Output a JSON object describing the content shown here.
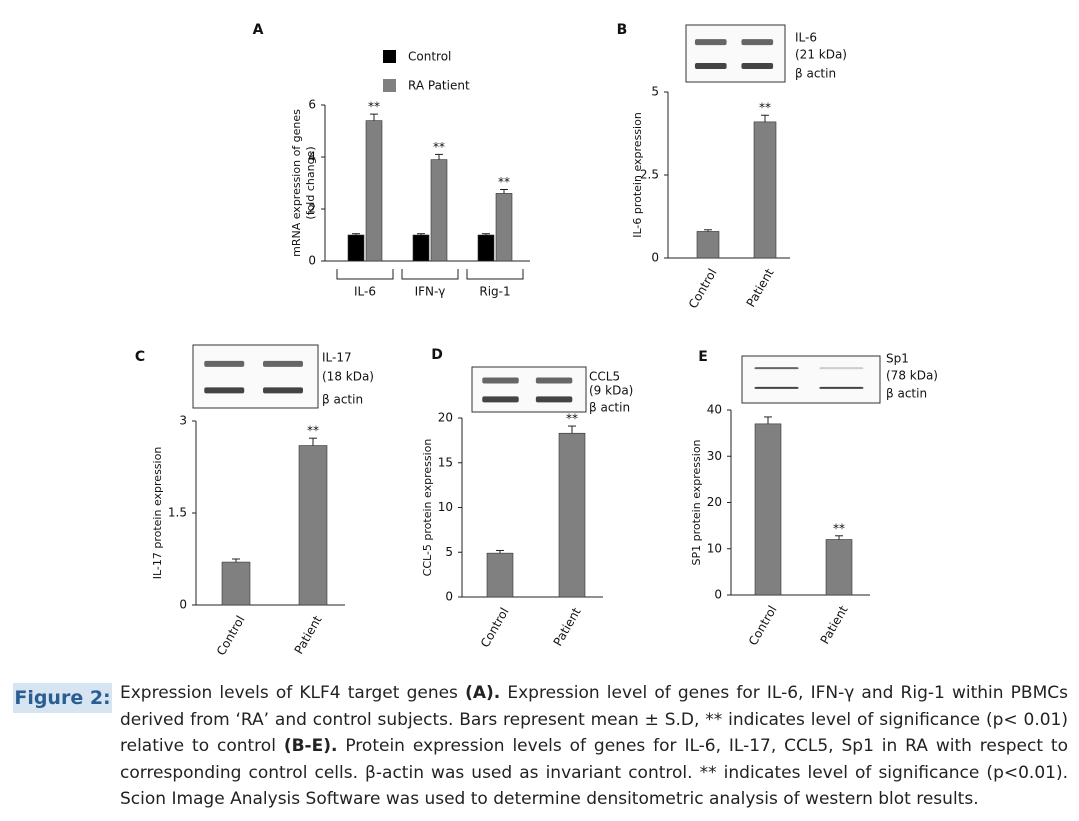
{
  "chart_data": [
    {
      "type": "bar",
      "panel": "A",
      "ylabel": [
        "mRNA expression of genes",
        "(fold change)"
      ],
      "categories": [
        "IL-6",
        "IFN-γ",
        "Rig-1"
      ],
      "series": [
        {
          "name": "Control",
          "color": "#000000",
          "values": [
            1,
            1,
            1
          ],
          "errors": [
            0.05,
            0.05,
            0.05
          ]
        },
        {
          "name": "RA Patient",
          "color": "#808080",
          "values": [
            5.4,
            3.9,
            2.6
          ],
          "errors": [
            0.25,
            0.2,
            0.15
          ],
          "annotations": [
            "**",
            "**",
            "**"
          ]
        }
      ],
      "ylim": [
        0,
        6
      ],
      "yticks": [
        0,
        2,
        4,
        6
      ]
    },
    {
      "type": "bar",
      "panel": "B",
      "ylabel": "IL-6 protein expression",
      "blot_labels": [
        "IL-6",
        "(21 kDa)",
        "β actin"
      ],
      "categories": [
        "Control",
        "Patient"
      ],
      "values": [
        0.8,
        4.1
      ],
      "errors": [
        0.05,
        0.2
      ],
      "color": "#808080",
      "annotations": [
        {
          "index": 1,
          "text": "**"
        }
      ],
      "ylim": [
        0,
        5
      ],
      "yticks": [
        0,
        2.5,
        5
      ]
    },
    {
      "type": "bar",
      "panel": "C",
      "ylabel": "IL-17 protein expression",
      "blot_labels": [
        "IL-17",
        "(18 kDa)",
        "β actin"
      ],
      "categories": [
        "Control",
        "Patient"
      ],
      "values": [
        0.7,
        2.6
      ],
      "errors": [
        0.05,
        0.12
      ],
      "color": "#808080",
      "annotations": [
        {
          "index": 1,
          "text": "**"
        }
      ],
      "ylim": [
        0,
        3
      ],
      "yticks": [
        0,
        1.5,
        3
      ]
    },
    {
      "type": "bar",
      "panel": "D",
      "ylabel": "CCL-5 protein expression",
      "blot_labels": [
        "CCL5",
        "(9 kDa)",
        "β actin"
      ],
      "categories": [
        "Control",
        "Patient"
      ],
      "values": [
        4.9,
        18.3
      ],
      "errors": [
        0.3,
        0.8
      ],
      "color": "#808080",
      "annotations": [
        {
          "index": 1,
          "text": "**"
        }
      ],
      "ylim": [
        0,
        20
      ],
      "yticks": [
        0,
        5,
        10,
        15,
        20
      ]
    },
    {
      "type": "bar",
      "panel": "E",
      "ylabel": "SP1 protein expression",
      "blot_labels": [
        "Sp1",
        "(78 kDa)",
        "β actin"
      ],
      "categories": [
        "Control",
        "Patient"
      ],
      "values": [
        37,
        12
      ],
      "errors": [
        1.5,
        0.8
      ],
      "color": "#808080",
      "annotations": [
        {
          "index": 1,
          "text": "**"
        }
      ],
      "ylim": [
        0,
        40
      ],
      "yticks": [
        0,
        10,
        20,
        30,
        40
      ]
    }
  ],
  "caption": {
    "label": "Figure 2:",
    "segments": [
      "Expression levels of KLF4 target genes ",
      "(A).",
      " Expression level of genes for IL-6, IFN-γ and Rig-1 within PBMCs derived from ‘RA’ and control subjects. Bars represent mean ± S.D, ** indicates level of significance (p< 0.01) relative to control  ",
      "(B-E).",
      " Protein expression levels of genes for IL-6, IL-17, CCL5, Sp1 in RA with respect to corresponding control cells. β-actin was used as invariant control. ** indicates level of significance (p<0.01). Scion Image Analysis Software was used to determine densitometric analysis of western blot results."
    ]
  }
}
